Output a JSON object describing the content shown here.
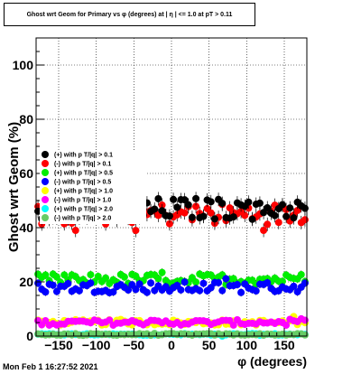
{
  "chart_data": {
    "type": "scatter",
    "title": "Ghost wrt Geom for Primary vs φ (degrees) at | η | <= 1.0 at pT > 0.11",
    "xlabel": "φ (degrees)",
    "ylabel": "Ghost wrt Geom (%)",
    "xlim": [
      -180,
      180
    ],
    "ylim": [
      0,
      110
    ],
    "x_ticks": [
      -150,
      -100,
      -50,
      0,
      50,
      100,
      150
    ],
    "x_tick_labels": [
      "−150",
      "−100",
      "−50",
      "0",
      "50",
      "100",
      "150"
    ],
    "y_ticks": [
      0,
      20,
      40,
      60,
      80,
      100
    ],
    "y_tick_labels": [
      "0",
      "20",
      "40",
      "60",
      "80",
      "100"
    ],
    "grid": true,
    "legend_position": "mid-left",
    "series": [
      {
        "name": "(+) with p T/|q| > 0.1",
        "color": "#000000",
        "center": 47,
        "spread": 4,
        "err": 2.5
      },
      {
        "name": "(-) with p T/|q| > 0.1",
        "color": "#ff0000",
        "center": 45,
        "spread": 4,
        "err": 2.5
      },
      {
        "name": "(+) with p T/|q| > 0.5",
        "color": "#00ee00",
        "center": 21,
        "spread": 2,
        "err": 1.5
      },
      {
        "name": "(-) with p T/|q| > 0.5",
        "color": "#0000ff",
        "center": 18,
        "spread": 2,
        "err": 1.5
      },
      {
        "name": "(+) with p T/|q| > 1.0",
        "color": "#ffff00",
        "center": 5,
        "spread": 1,
        "err": 0.8
      },
      {
        "name": "(-) with p T/|q| > 1.0",
        "color": "#ff00ff",
        "center": 5,
        "spread": 1,
        "err": 0.8
      },
      {
        "name": "(+) with p T/|q| > 2.0",
        "color": "#00ffff",
        "center": 0.6,
        "spread": 0.3,
        "err": 0.4
      },
      {
        "name": "(-) with p T/|q| > 2.0",
        "color": "#66cc66",
        "center": 0.6,
        "spread": 0.3,
        "err": 0.4
      }
    ],
    "x_bin_width": 5
  },
  "footer": {
    "timestamp": "Mon Feb  1 16:27:52 2021"
  }
}
